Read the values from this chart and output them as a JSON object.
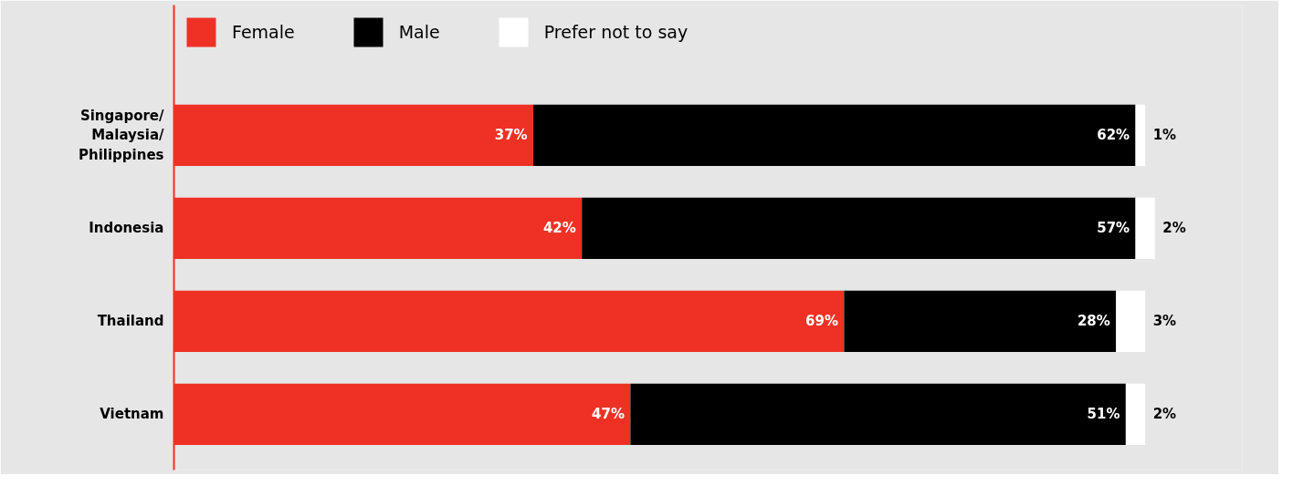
{
  "chart_data": {
    "type": "bar",
    "orientation": "horizontal",
    "stacked": true,
    "categories": [
      "Singapore/\nMalaysia/\nPhilippines",
      "Indonesia",
      "Thailand",
      "Vietnam"
    ],
    "series": [
      {
        "name": "Female",
        "color": "#ef3125",
        "values": [
          37,
          42,
          69,
          47
        ],
        "value_labels": [
          "37%",
          "42%",
          "69%",
          "47%"
        ]
      },
      {
        "name": "Male",
        "color": "#000000",
        "values": [
          62,
          57,
          28,
          51
        ],
        "value_labels": [
          "62%",
          "57%",
          "28%",
          "51%"
        ]
      },
      {
        "name": "Prefer not to say",
        "color": "#ffffff",
        "values": [
          1,
          2,
          3,
          2
        ],
        "value_labels": [
          "1%",
          "2%",
          "3%",
          "2%"
        ]
      }
    ],
    "xlim": [
      0,
      110
    ],
    "tick_labels": "y",
    "legend": "top left"
  }
}
